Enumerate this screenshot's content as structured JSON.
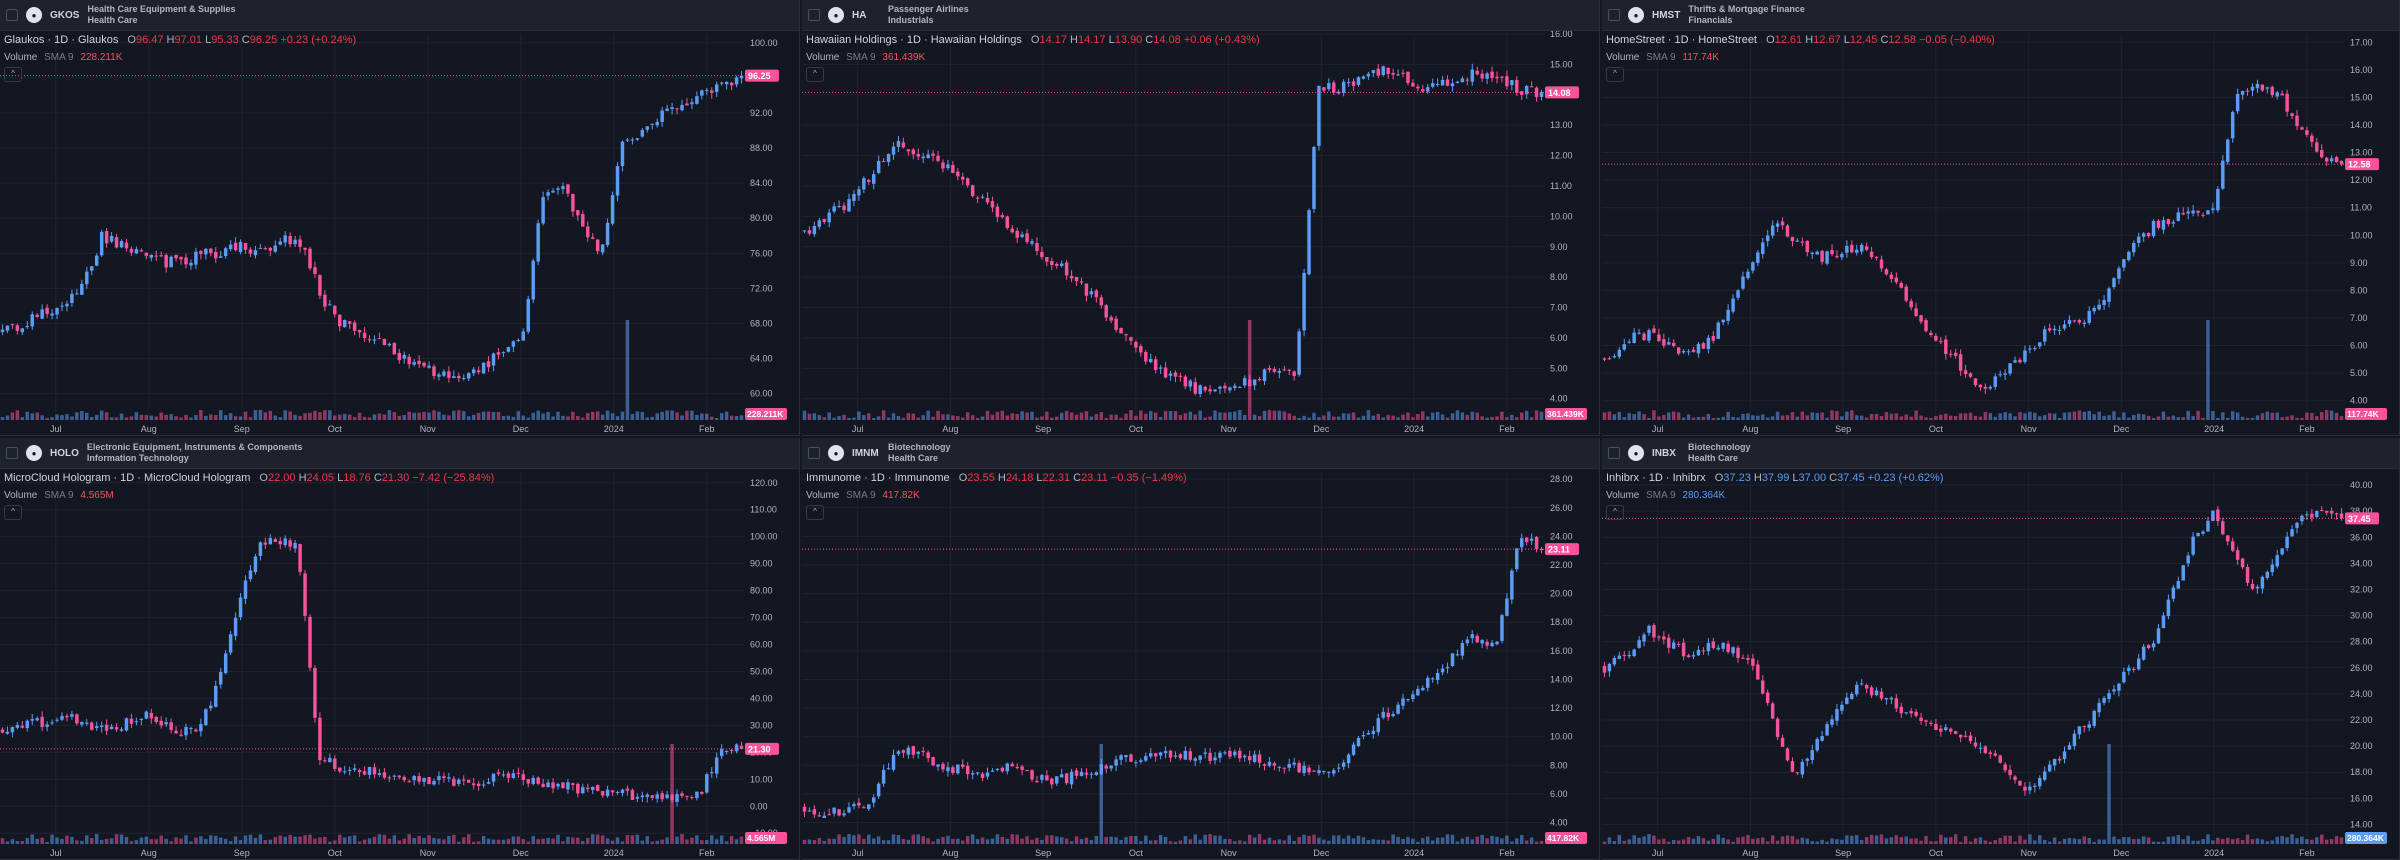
{
  "colors": {
    "up": "#5b9cf6",
    "down": "#f7529a",
    "bg": "#131722",
    "header": "#1e222d",
    "grid": "#1f2330",
    "axis_text": "#b2b5be",
    "price_line": "#f7529a"
  },
  "panels": [
    {
      "symbol": "GKOS",
      "logo_icon": "glaukos-logo-icon",
      "industry": "Health Care Equipment & Supplies",
      "sector": "Health Care",
      "title": "Glaukos · 1D · Glaukos",
      "ohlc": {
        "o": "96.47",
        "h": "97.01",
        "l": "95.33",
        "c": "96.25",
        "chg": "+0.23 (+0.24%)"
      },
      "ohlc_up": false,
      "volume_label": "Volume",
      "sma_label": "SMA 9",
      "volume_value": "228.211K",
      "volume_up": false,
      "price_tag": "96.25",
      "volume_tag": "228.211K",
      "y_ticks": [
        "100.00",
        "96.00",
        "92.00",
        "88.00",
        "84.00",
        "80.00",
        "76.00",
        "72.00",
        "68.00",
        "64.00",
        "60.00"
      ],
      "x_ticks": [
        "Jul",
        "Aug",
        "Sep",
        "Oct",
        "Nov",
        "Dec",
        "2024",
        "Feb"
      ],
      "chart_data": {
        "type": "candlestick",
        "ylim": [
          57,
          101
        ],
        "last": 96.25,
        "path": [
          67,
          68,
          69,
          70,
          72,
          78,
          77,
          76,
          75,
          75,
          76,
          76,
          77,
          76,
          78,
          77,
          71,
          68,
          67,
          66,
          64,
          63,
          62,
          61,
          63,
          65,
          66,
          82,
          84,
          79,
          76,
          88,
          90,
          92,
          93,
          94,
          95,
          96.25
        ],
        "vol_spike": 0.84
      }
    },
    {
      "symbol": "HA",
      "logo_icon": "hawaiian-logo-icon",
      "industry": "Passenger Airlines",
      "sector": "Industrials",
      "title": "Hawaiian Holdings · 1D · Hawaiian Holdings",
      "ohlc": {
        "o": "14.17",
        "h": "14.17",
        "l": "13.90",
        "c": "14.08",
        "chg": "+0.06 (+0.43%)"
      },
      "ohlc_up": false,
      "volume_label": "Volume",
      "sma_label": "SMA 9",
      "volume_value": "361.439K",
      "volume_up": false,
      "price_tag": "14.08",
      "volume_tag": "361.439K",
      "y_ticks": [
        "16.00",
        "15.00",
        "14.00",
        "13.00",
        "12.00",
        "11.00",
        "10.00",
        "9.00",
        "8.00",
        "7.00",
        "6.00",
        "5.00",
        "4.00"
      ],
      "x_ticks": [
        "Jul",
        "Aug",
        "Sep",
        "Oct",
        "Nov",
        "Dec",
        "2024",
        "Feb"
      ],
      "chart_data": {
        "type": "candlestick",
        "ylim": [
          3.3,
          16
        ],
        "last": 14.08,
        "path": [
          9.5,
          10,
          10.5,
          11.4,
          12.4,
          12,
          11.8,
          11.2,
          10.5,
          9.8,
          9.2,
          8.6,
          8,
          7.3,
          6.4,
          5.6,
          4.9,
          4.5,
          4.2,
          4.3,
          4.6,
          4.9,
          4.8,
          14.1,
          14.3,
          14.6,
          14.9,
          14.5,
          14.2,
          14.4,
          14.7,
          14.6,
          14.2,
          14.08
        ],
        "vol_spike": 0.6
      }
    },
    {
      "symbol": "HMST",
      "logo_icon": "homestreet-logo-icon",
      "industry": "Thrifts & Mortgage Finance",
      "sector": "Financials",
      "title": "HomeStreet · 1D · HomeStreet",
      "ohlc": {
        "o": "12.61",
        "h": "12.67",
        "l": "12.45",
        "c": "12.58",
        "chg": "−0.05 (−0.40%)"
      },
      "ohlc_up": false,
      "volume_label": "Volume",
      "sma_label": "SMA 9",
      "volume_value": "117.74K",
      "volume_up": false,
      "price_tag": "12.58",
      "volume_tag": "117.74K",
      "y_ticks": [
        "17.00",
        "16.00",
        "15.00",
        "14.00",
        "13.00",
        "12.00",
        "11.00",
        "10.00",
        "9.00",
        "8.00",
        "7.00",
        "6.00",
        "5.00",
        "4.00"
      ],
      "x_ticks": [
        "Jul",
        "Aug",
        "Sep",
        "Oct",
        "Nov",
        "Dec",
        "2024",
        "Feb"
      ],
      "chart_data": {
        "type": "candlestick",
        "ylim": [
          3.3,
          17.3
        ],
        "last": 12.58,
        "path": [
          5.5,
          6.2,
          6.4,
          6.0,
          5.8,
          6.1,
          7.5,
          9,
          10.5,
          9.8,
          9.2,
          9.3,
          9.6,
          9,
          8,
          7,
          6,
          5.2,
          4.5,
          5,
          5.8,
          6.5,
          6.8,
          7.1,
          8,
          9.5,
          10.3,
          10.6,
          10.8,
          11.1,
          15.2,
          15.4,
          15.1,
          14,
          13,
          12.58
        ],
        "vol_spike": 0.82
      }
    },
    {
      "symbol": "HOLO",
      "logo_icon": "microcloud-logo-icon",
      "industry": "Electronic Equipment, Instruments & Components",
      "sector": "Information Technology",
      "title": "MicroCloud Hologram · 1D · MicroCloud Hologram",
      "ohlc": {
        "o": "22.00",
        "h": "24.05",
        "l": "18.76",
        "c": "21.30",
        "chg": "−7.42 (−25.84%)"
      },
      "ohlc_up": false,
      "volume_label": "Volume",
      "sma_label": "SMA 9",
      "volume_value": "4.565M",
      "volume_up": false,
      "price_tag": "21.30",
      "volume_tag": "4.565M",
      "y_ticks": [
        "120.00",
        "110.00",
        "100.00",
        "90.00",
        "80.00",
        "70.00",
        "60.00",
        "50.00",
        "40.00",
        "30.00",
        "20.00",
        "10.00",
        "0.00",
        "−10.00"
      ],
      "x_ticks": [
        "Jul",
        "Aug",
        "Sep",
        "Oct",
        "Nov",
        "Dec",
        "2024",
        "Feb"
      ],
      "chart_data": {
        "type": "candlestick",
        "ylim": [
          -14,
          124
        ],
        "last": 21.3,
        "path": [
          28,
          30,
          31,
          33,
          30,
          28,
          31,
          34,
          29,
          27,
          40,
          70,
          95,
          100,
          95,
          18,
          14,
          13,
          12,
          11,
          10,
          9,
          8,
          10,
          11,
          9,
          8,
          7,
          6,
          5,
          4,
          4,
          3,
          4,
          22,
          21.3
        ],
        "vol_spike": 0.9
      }
    },
    {
      "symbol": "IMNM",
      "logo_icon": "immunome-logo-icon",
      "industry": "Biotechnology",
      "sector": "Health Care",
      "title": "Immunome · 1D · Immunome",
      "ohlc": {
        "o": "23.55",
        "h": "24.18",
        "l": "22.31",
        "c": "23.11",
        "chg": "−0.35 (−1.49%)"
      },
      "ohlc_up": false,
      "volume_label": "Volume",
      "sma_label": "SMA 9",
      "volume_value": "417.82K",
      "volume_up": false,
      "price_tag": "23.11",
      "volume_tag": "417.82K",
      "y_ticks": [
        "28.00",
        "26.00",
        "24.00",
        "22.00",
        "20.00",
        "18.00",
        "16.00",
        "14.00",
        "12.00",
        "10.00",
        "8.00",
        "6.00",
        "4.00"
      ],
      "x_ticks": [
        "Jul",
        "Aug",
        "Sep",
        "Oct",
        "Nov",
        "Dec",
        "2024",
        "Feb"
      ],
      "chart_data": {
        "type": "candlestick",
        "ylim": [
          2.5,
          28.5
        ],
        "last": 23.11,
        "path": [
          5,
          4.5,
          5,
          5.5,
          9,
          8.8,
          8.2,
          7.6,
          7.4,
          7.8,
          7.3,
          6.8,
          7.2,
          7.8,
          8.3,
          8.6,
          9,
          8.8,
          8.6,
          8.7,
          8.5,
          8.2,
          7.8,
          7.6,
          8.2,
          10,
          11.5,
          12.5,
          14,
          15.5,
          17,
          16.5,
          24,
          23.11
        ],
        "vol_spike": 0.4
      }
    },
    {
      "symbol": "INBX",
      "logo_icon": "inhibrx-logo-icon",
      "industry": "Biotechnology",
      "sector": "Health Care",
      "title": "Inhibrx · 1D · Inhibrx",
      "ohlc": {
        "o": "37.23",
        "h": "37.99",
        "l": "37.00",
        "c": "37.45",
        "chg": "+0.23 (+0.62%)"
      },
      "ohlc_up": true,
      "volume_label": "Volume",
      "sma_label": "SMA 9",
      "volume_value": "280.364K",
      "volume_up": true,
      "price_tag": "37.45",
      "volume_tag": "280.364K",
      "y_ticks": [
        "40.00",
        "38.00",
        "36.00",
        "34.00",
        "32.00",
        "30.00",
        "28.00",
        "26.00",
        "24.00",
        "22.00",
        "20.00",
        "18.00",
        "16.00",
        "14.00"
      ],
      "x_ticks": [
        "Jul",
        "Aug",
        "Sep",
        "Oct",
        "Nov",
        "Dec",
        "2024",
        "Feb"
      ],
      "chart_data": {
        "type": "candlestick",
        "ylim": [
          12.5,
          41
        ],
        "last": 37.45,
        "path": [
          26,
          27,
          29,
          28,
          27,
          28,
          27.5,
          26,
          22,
          18,
          20,
          23,
          24.5,
          24,
          23,
          22,
          21.5,
          21,
          20,
          18,
          16.5,
          18,
          20,
          22,
          24,
          26,
          28,
          32,
          36,
          38,
          34,
          32,
          35,
          37.5,
          38,
          37.45
        ],
        "vol_spike": 0.68
      }
    }
  ]
}
